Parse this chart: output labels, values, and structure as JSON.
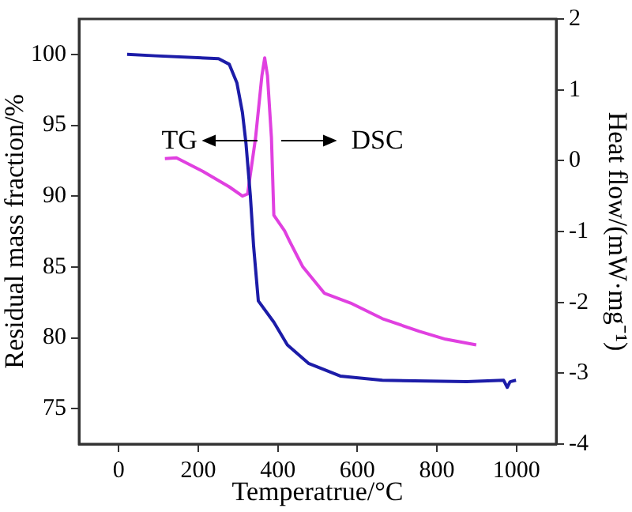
{
  "chart_data": {
    "type": "line",
    "xlabel": "Temperatrue/°C",
    "ylabel": "Residual mass fraction/%",
    "y2label": "Heat flow/(mW·mg⁻¹)",
    "xlim": [
      -100,
      1100
    ],
    "xticks": [
      0,
      200,
      400,
      600,
      800,
      1000
    ],
    "ylim": [
      72.5,
      102.5
    ],
    "yticks": [
      75,
      80,
      85,
      90,
      95,
      100
    ],
    "y2lim": [
      -4,
      2
    ],
    "y2ticks": [
      -4,
      -3,
      -2,
      -1,
      0,
      1,
      2
    ],
    "annotations": [
      "TG",
      "DSC"
    ],
    "grid": false,
    "legend": false,
    "marker": "none",
    "line_style": "solid",
    "series": [
      {
        "color": "#1c1ca8",
        "x": [
          21,
          92,
          251,
          278,
          297,
          311,
          320,
          331,
          339,
          351,
          390,
          424,
          477,
          557,
          663,
          875,
          968,
          977,
          984,
          999
        ],
        "values": [
          100.0,
          99.9,
          99.7,
          99.3,
          98.0,
          95.9,
          93.7,
          90.0,
          86.5,
          82.6,
          81.1,
          79.5,
          78.2,
          77.3,
          77.0,
          76.9,
          77.0,
          76.5,
          76.9,
          77.0
        ]
      },
      {
        "axis": "y2",
        "color": "#e040e0",
        "x": [
          116,
          145,
          211,
          278,
          311,
          324,
          344,
          360,
          367,
          374,
          384,
          390,
          417,
          430,
          450,
          463,
          517,
          583,
          663,
          756,
          822,
          899
        ],
        "values": [
          0.03,
          0.04,
          -0.15,
          -0.37,
          -0.5,
          -0.47,
          0.32,
          1.2,
          1.45,
          1.2,
          0.32,
          -0.77,
          -0.99,
          -1.14,
          -1.36,
          -1.5,
          -1.87,
          -2.01,
          -2.23,
          -2.41,
          -2.52,
          -2.6
        ]
      }
    ]
  }
}
